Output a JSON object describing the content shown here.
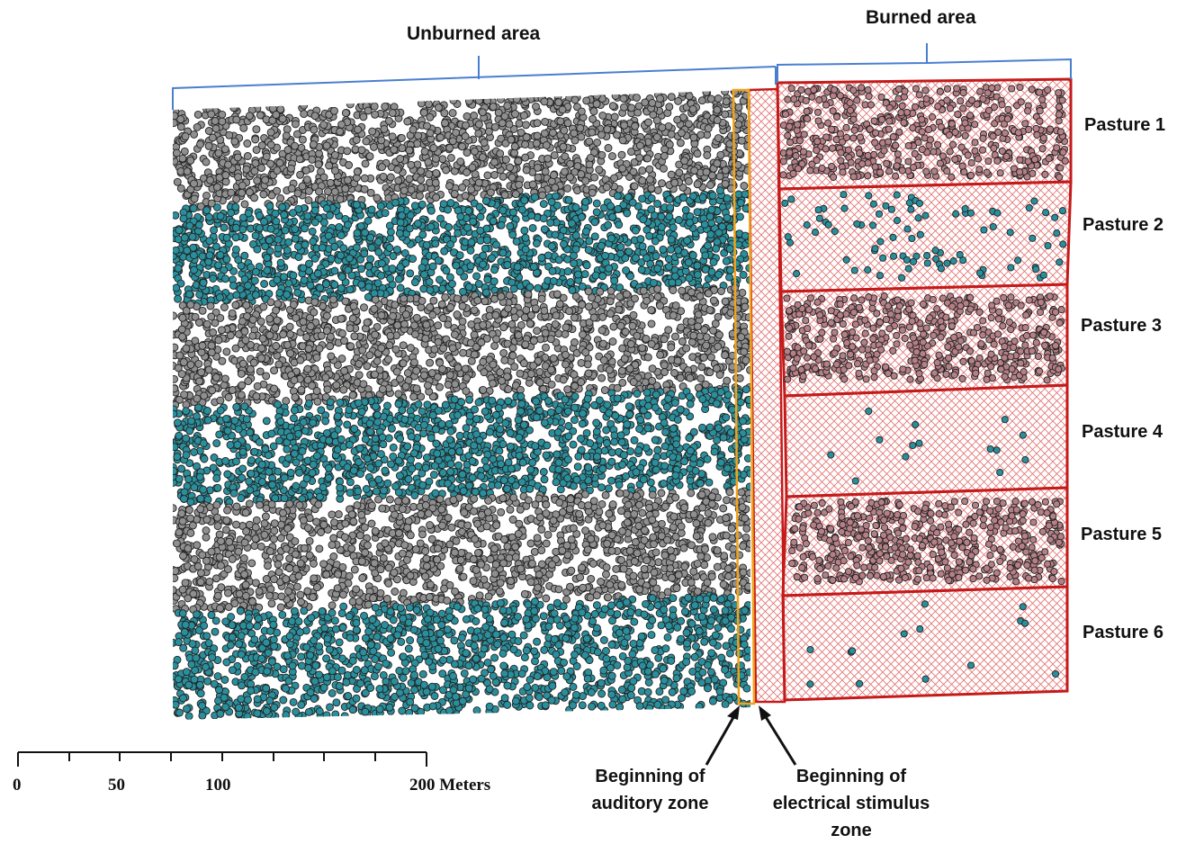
{
  "labels": {
    "unburned": "Unburned area",
    "burned": "Burned area",
    "auditory": "Beginning of auditory zone",
    "electrical": "Beginning of electrical stimulus zone"
  },
  "pastures": [
    {
      "label": "Pasture 1",
      "type": "grazed"
    },
    {
      "label": "Pasture 2",
      "type": "ungrazed"
    },
    {
      "label": "Pasture 3",
      "type": "grazed"
    },
    {
      "label": "Pasture 4",
      "type": "ungrazed"
    },
    {
      "label": "Pasture 5",
      "type": "grazed"
    },
    {
      "label": "Pasture 6",
      "type": "ungrazed"
    }
  ],
  "scale_bar": {
    "ticks": [
      "0",
      "50",
      "100",
      "200 Meters"
    ],
    "unit": "Meters"
  },
  "colors": {
    "grazed_points": "#8f8f8f",
    "ungrazed_points": "#2a8f9c",
    "burned_points": "#b57f86",
    "burned_outline": "#c41a1a",
    "hatch": "#e06a6a",
    "auditory_line": "#f0a31b",
    "brace": "#4a7fd0"
  }
}
